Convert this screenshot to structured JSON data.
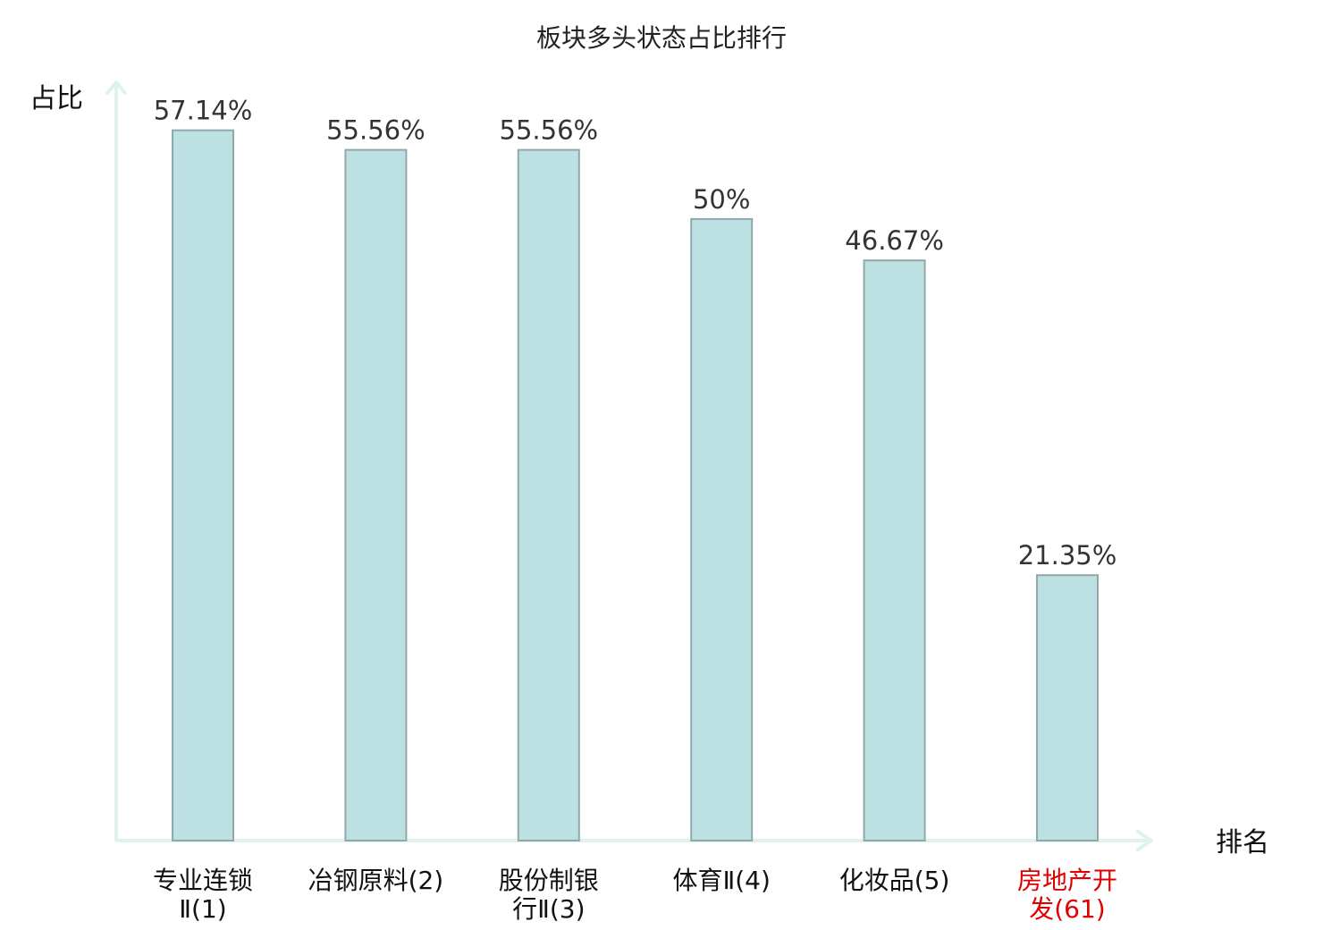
{
  "title": "板块多头状态占比排行",
  "y_axis_name": "占比",
  "x_axis_name": "排名",
  "colors": {
    "bar_fill": "#bde0e3",
    "bar_stroke": "#8fa9ab",
    "axis": "#dff2ee",
    "value_text": "#333333",
    "label_text": "#111111",
    "highlight_text": "#e00000"
  },
  "chart_data": {
    "type": "bar",
    "title": "板块多头状态占比排行",
    "xlabel": "排名",
    "ylabel": "占比",
    "ylim": [
      0,
      61
    ],
    "grid": false,
    "categories": [
      [
        "专业连锁",
        "Ⅱ(1)"
      ],
      [
        "冶钢原料(2)"
      ],
      [
        "股份制银",
        "行Ⅱ(3)"
      ],
      [
        "体育Ⅱ(4)"
      ],
      [
        "化妆品(5)"
      ],
      [
        "房地产开",
        "发(61)"
      ]
    ],
    "highlight": [
      false,
      false,
      false,
      false,
      false,
      true
    ],
    "values": [
      57.14,
      55.56,
      55.56,
      50,
      46.67,
      21.35
    ],
    "value_labels": [
      "57.14%",
      "55.56%",
      "55.56%",
      "50%",
      "46.67%",
      "21.35%"
    ]
  }
}
